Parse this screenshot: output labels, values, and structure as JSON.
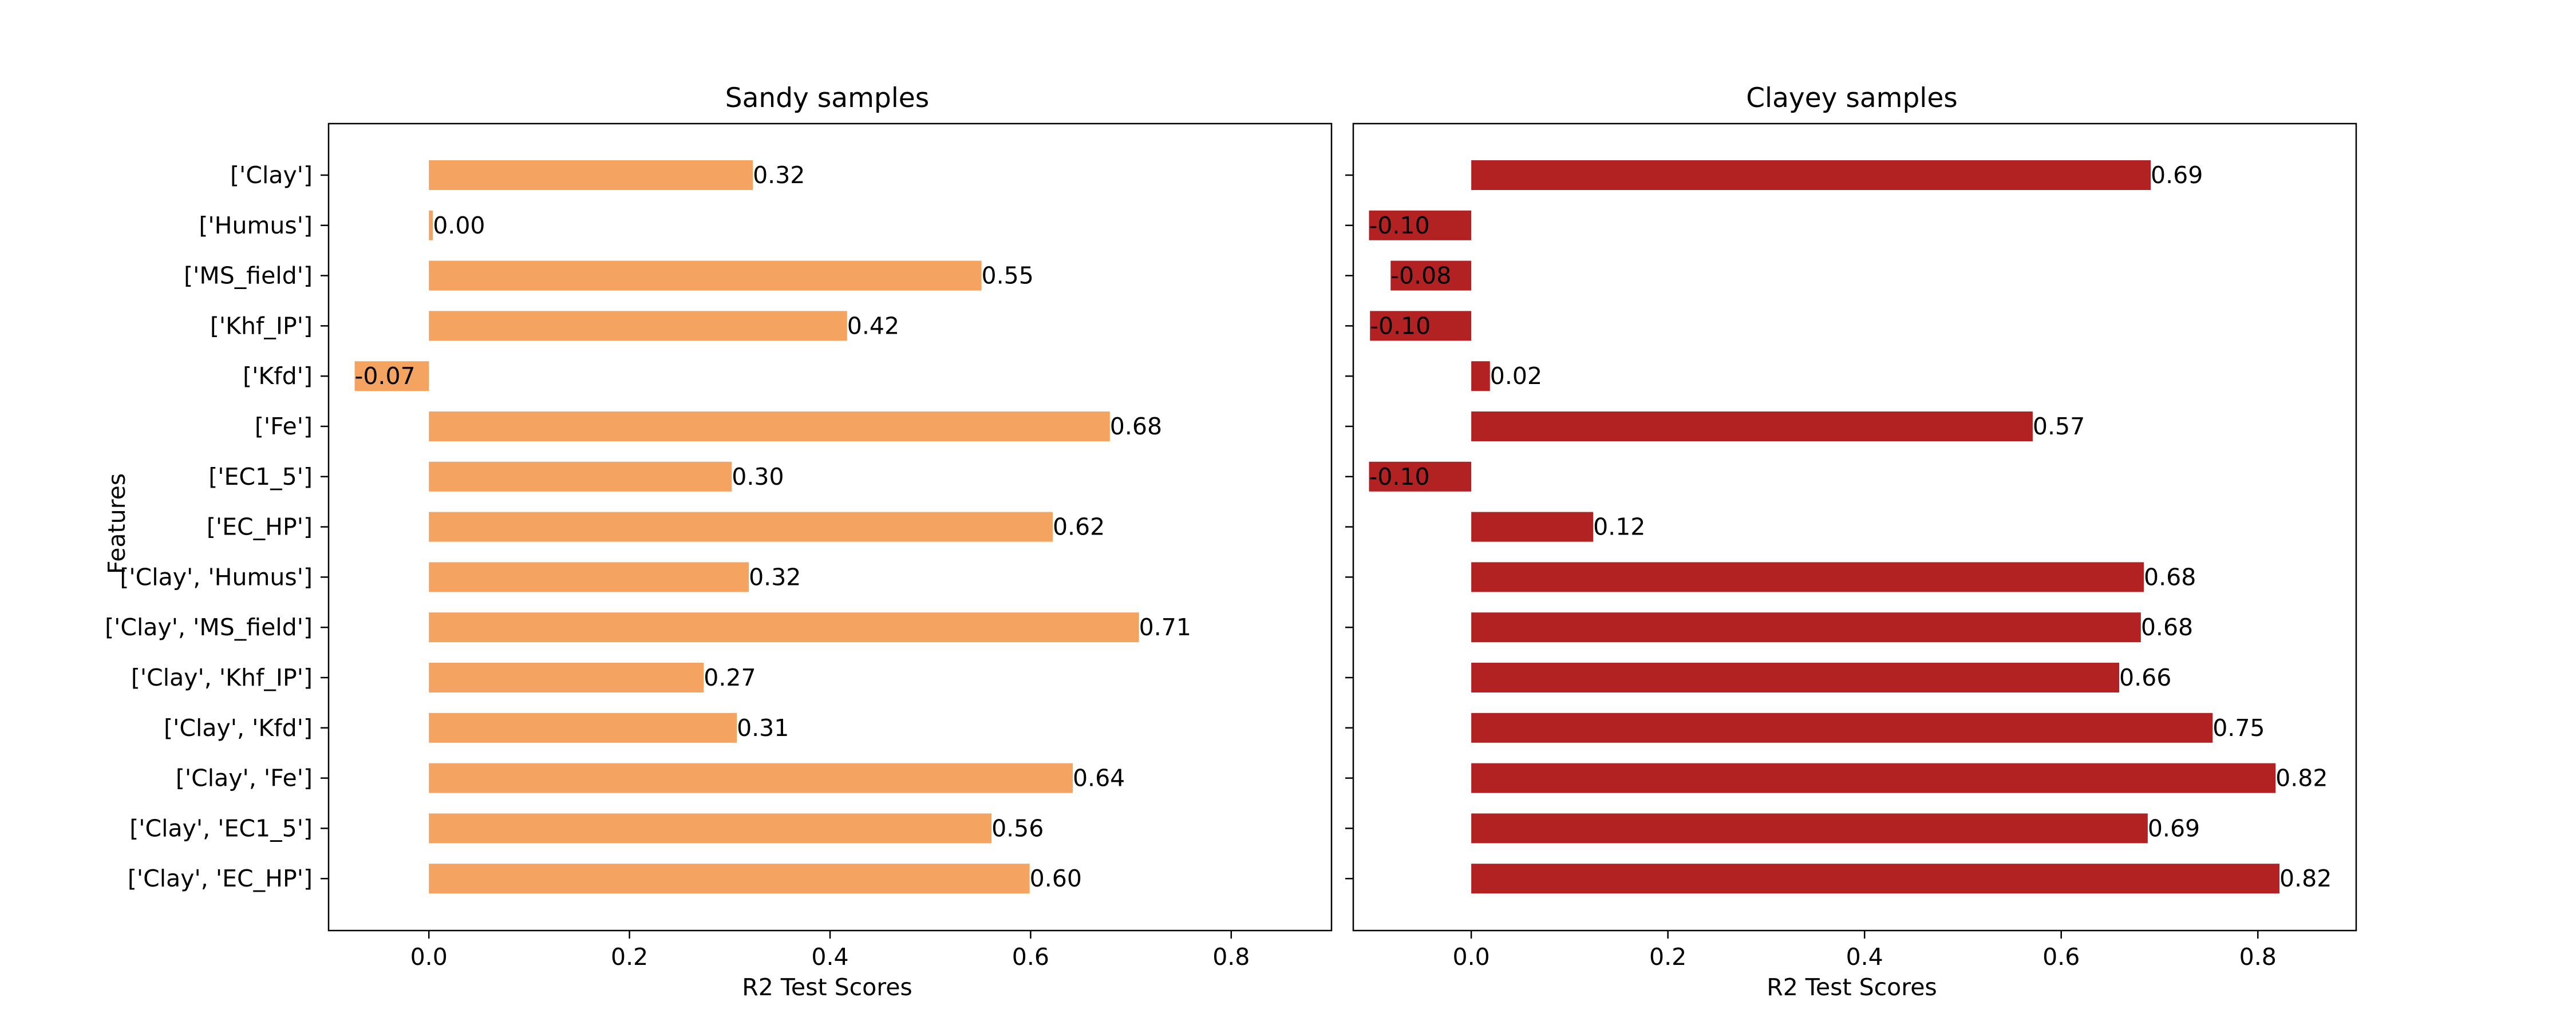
{
  "chart_data": [
    {
      "type": "bar",
      "orientation": "horizontal",
      "title": "Sandy samples",
      "xlabel": "R2 Test Scores",
      "ylabel": "Features",
      "xlim": [
        -0.1,
        0.9
      ],
      "xticks": [
        "0.0",
        "0.2",
        "0.4",
        "0.6",
        "0.8"
      ],
      "color": "#f4a460",
      "categories": [
        "['Clay']",
        "['Humus']",
        "['MS_field']",
        "['Khf_IP']",
        "['Kfd']",
        "['Fe']",
        "['EC1_5']",
        "['EC_HP']",
        "['Clay', 'Humus']",
        "['Clay', 'MS_field']",
        "['Clay', 'Khf_IP']",
        "['Clay', 'Kfd']",
        "['Clay', 'Fe']",
        "['Clay', 'EC1_5']",
        "['Clay', 'EC_HP']"
      ],
      "values": [
        0.323,
        0.004,
        0.551,
        0.417,
        -0.074,
        0.679,
        0.302,
        0.622,
        0.319,
        0.708,
        0.274,
        0.307,
        0.642,
        0.561,
        0.599
      ],
      "value_labels": [
        "0.32",
        "0.00",
        "0.55",
        "0.42",
        "-0.07",
        "0.68",
        "0.30",
        "0.62",
        "0.32",
        "0.71",
        "0.27",
        "0.31",
        "0.64",
        "0.56",
        "0.60"
      ]
    },
    {
      "type": "bar",
      "orientation": "horizontal",
      "title": "Clayey samples",
      "xlabel": "R2 Test Scores",
      "ylabel": "",
      "xlim": [
        -0.12,
        0.9
      ],
      "xticks": [
        "0.0",
        "0.2",
        "0.4",
        "0.6",
        "0.8"
      ],
      "color": "#b22222",
      "categories": [
        "['Clay']",
        "['Humus']",
        "['MS_field']",
        "['Khf_IP']",
        "['Kfd']",
        "['Fe']",
        "['EC1_5']",
        "['EC_HP']",
        "['Clay', 'Humus']",
        "['Clay', 'MS_field']",
        "['Clay', 'Khf_IP']",
        "['Clay', 'Kfd']",
        "['Clay', 'Fe']",
        "['Clay', 'EC1_5']",
        "['Clay', 'EC_HP']"
      ],
      "values": [
        0.691,
        -0.104,
        -0.082,
        -0.103,
        0.019,
        0.571,
        -0.104,
        0.124,
        0.684,
        0.681,
        0.659,
        0.754,
        0.818,
        0.688,
        0.822
      ],
      "value_labels": [
        "0.69",
        "-0.10",
        "-0.08",
        "-0.10",
        "0.02",
        "0.57",
        "-0.10",
        "0.12",
        "0.68",
        "0.68",
        "0.66",
        "0.75",
        "0.82",
        "0.69",
        "0.82"
      ]
    }
  ]
}
